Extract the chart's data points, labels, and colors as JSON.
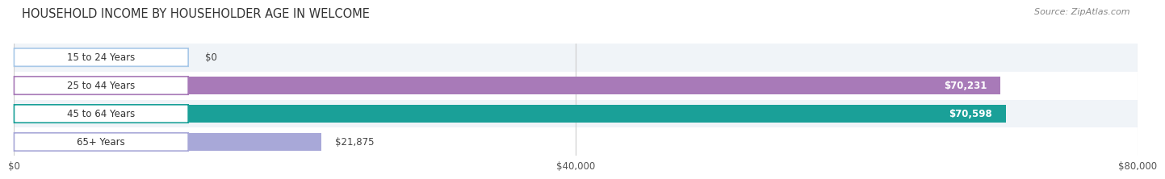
{
  "title": "HOUSEHOLD INCOME BY HOUSEHOLDER AGE IN WELCOME",
  "source": "Source: ZipAtlas.com",
  "categories": [
    "15 to 24 Years",
    "25 to 44 Years",
    "45 to 64 Years",
    "65+ Years"
  ],
  "values": [
    0,
    70231,
    70598,
    21875
  ],
  "bar_colors": [
    "#a8c8e8",
    "#a87ab8",
    "#1aa098",
    "#a8a8d8"
  ],
  "x_ticks": [
    0,
    40000,
    80000
  ],
  "x_tick_labels": [
    "$0",
    "$40,000",
    "$80,000"
  ],
  "x_max": 80000,
  "value_labels": [
    "$0",
    "$70,231",
    "$70,598",
    "$21,875"
  ],
  "title_fontsize": 10.5,
  "source_fontsize": 8,
  "tick_fontsize": 8.5
}
